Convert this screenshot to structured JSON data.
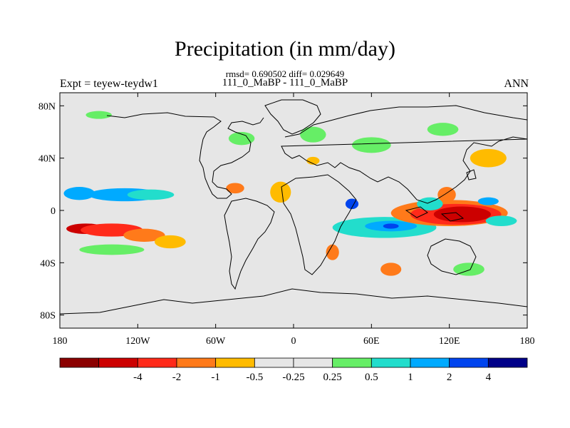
{
  "title": "Precipitation (in mm/day)",
  "stats_text": "rmsd= 0.690502  diff= 0.029649",
  "subtitle": "111_0_MaBP - 111_0_MaBP",
  "left_label": "Expt = teyew-teydw1",
  "right_label": "ANN",
  "lon_ticks": [
    {
      "value": -180,
      "label": "180"
    },
    {
      "value": -120,
      "label": "120W"
    },
    {
      "value": -60,
      "label": "60W"
    },
    {
      "value": 0,
      "label": "0"
    },
    {
      "value": 60,
      "label": "60E"
    },
    {
      "value": 120,
      "label": "120E"
    },
    {
      "value": 180,
      "label": "180"
    }
  ],
  "lat_ticks": [
    {
      "value": 80,
      "label": "80N"
    },
    {
      "value": 40,
      "label": "40N"
    },
    {
      "value": 0,
      "label": "0"
    },
    {
      "value": -40,
      "label": "40S"
    },
    {
      "value": -80,
      "label": "80S"
    }
  ],
  "colorbar": {
    "colors": [
      "#8b0000",
      "#cc0000",
      "#ff2a1a",
      "#ff7a1a",
      "#ffbb00",
      "#e6e6e6",
      "#e6e6e6",
      "#66ee66",
      "#22ddcc",
      "#00aaff",
      "#0044ee",
      "#000088"
    ],
    "labels": [
      "-4",
      "-2",
      "-1",
      "-0.5",
      "-0.25",
      "0.25",
      "0.5",
      "1",
      "2",
      "4"
    ]
  },
  "background_color": "#e6e6e6",
  "anomalies": [
    {
      "lon": -165,
      "lat": 13,
      "rx": 12,
      "ry": 5,
      "level": 9
    },
    {
      "lon": -130,
      "lat": 12,
      "rx": 28,
      "ry": 5,
      "level": 9
    },
    {
      "lon": -110,
      "lat": 12,
      "rx": 18,
      "ry": 4,
      "level": 8
    },
    {
      "lon": -160,
      "lat": -14,
      "rx": 15,
      "ry": 4,
      "level": 1
    },
    {
      "lon": -140,
      "lat": -15,
      "rx": 24,
      "ry": 5,
      "level": 2
    },
    {
      "lon": -115,
      "lat": -19,
      "rx": 16,
      "ry": 5,
      "level": 3
    },
    {
      "lon": -95,
      "lat": -24,
      "rx": 12,
      "ry": 5,
      "level": 4
    },
    {
      "lon": -45,
      "lat": 17,
      "rx": 7,
      "ry": 4,
      "level": 3
    },
    {
      "lon": -10,
      "lat": 14,
      "rx": 8,
      "ry": 8,
      "level": 4
    },
    {
      "lon": 15,
      "lat": 38,
      "rx": 5,
      "ry": 3,
      "level": 4
    },
    {
      "lon": 45,
      "lat": 5,
      "rx": 5,
      "ry": 4,
      "level": 10
    },
    {
      "lon": 30,
      "lat": -32,
      "rx": 5,
      "ry": 6,
      "level": 3
    },
    {
      "lon": 70,
      "lat": -13,
      "rx": 40,
      "ry": 8,
      "level": 8
    },
    {
      "lon": 75,
      "lat": -12,
      "rx": 20,
      "ry": 4,
      "level": 9
    },
    {
      "lon": 75,
      "lat": -12,
      "rx": 6,
      "ry": 2,
      "level": 10
    },
    {
      "lon": 120,
      "lat": -2,
      "rx": 45,
      "ry": 10,
      "level": 3
    },
    {
      "lon": 125,
      "lat": -3,
      "rx": 35,
      "ry": 8,
      "level": 2
    },
    {
      "lon": 130,
      "lat": -3,
      "rx": 22,
      "ry": 6,
      "level": 1
    },
    {
      "lon": 118,
      "lat": 12,
      "rx": 7,
      "ry": 6,
      "level": 3
    },
    {
      "lon": 105,
      "lat": 5,
      "rx": 10,
      "ry": 5,
      "level": 8
    },
    {
      "lon": 150,
      "lat": 40,
      "rx": 14,
      "ry": 7,
      "level": 4
    },
    {
      "lon": 150,
      "lat": 7,
      "rx": 8,
      "ry": 3,
      "level": 9
    },
    {
      "lon": 160,
      "lat": -8,
      "rx": 12,
      "ry": 4,
      "level": 8
    },
    {
      "lon": 75,
      "lat": -45,
      "rx": 8,
      "ry": 5,
      "level": 3
    },
    {
      "lon": 135,
      "lat": -45,
      "rx": 12,
      "ry": 5,
      "level": 7
    },
    {
      "lon": 15,
      "lat": 58,
      "rx": 10,
      "ry": 6,
      "level": 7
    },
    {
      "lon": 60,
      "lat": 50,
      "rx": 15,
      "ry": 6,
      "level": 7
    },
    {
      "lon": -150,
      "lat": 73,
      "rx": 10,
      "ry": 3,
      "level": 7
    },
    {
      "lon": -40,
      "lat": 55,
      "rx": 10,
      "ry": 5,
      "level": 7
    },
    {
      "lon": 115,
      "lat": 62,
      "rx": 12,
      "ry": 5,
      "level": 7
    },
    {
      "lon": -140,
      "lat": -30,
      "rx": 25,
      "ry": 4,
      "level": 7
    }
  ]
}
